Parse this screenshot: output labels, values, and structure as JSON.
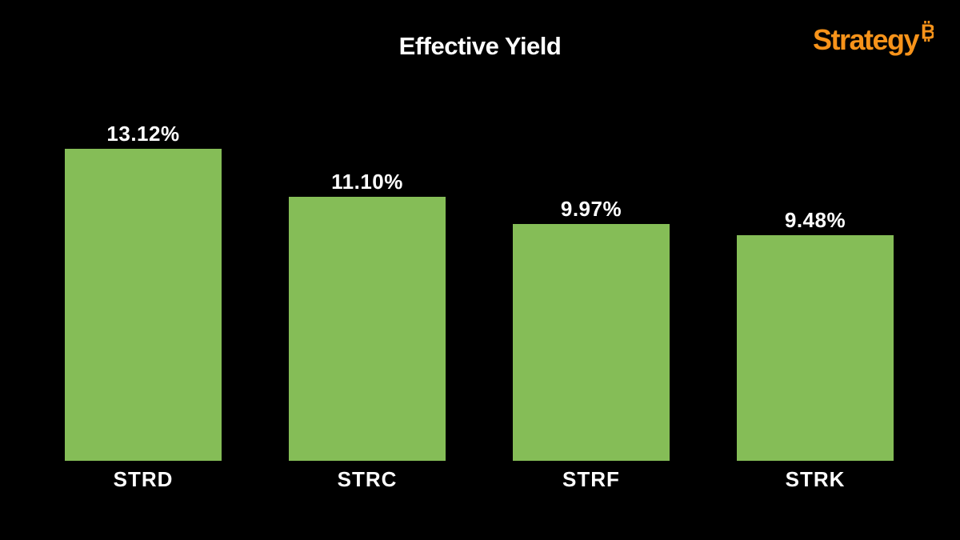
{
  "page": {
    "background_color": "#000000"
  },
  "header": {
    "title": "Effective Yield"
  },
  "logo": {
    "text": "Strategy",
    "symbol": "₿",
    "color": "#F7931A"
  },
  "chart_data": {
    "type": "bar",
    "title": "Effective Yield",
    "categories": [
      "STRD",
      "STRC",
      "STRF",
      "STRK"
    ],
    "values": [
      13.12,
      11.1,
      9.97,
      9.48
    ],
    "value_labels": [
      "13.12%",
      "11.10%",
      "9.97%",
      "9.48%"
    ],
    "xlabel": "",
    "ylabel": "",
    "ylim": [
      0,
      13.12
    ],
    "grid": false,
    "legend": false,
    "bar_color": "#85BD57",
    "value_label_color": "#FFFFFF",
    "tick_label_color": "#FFFFFF",
    "background_color": "#000000"
  }
}
